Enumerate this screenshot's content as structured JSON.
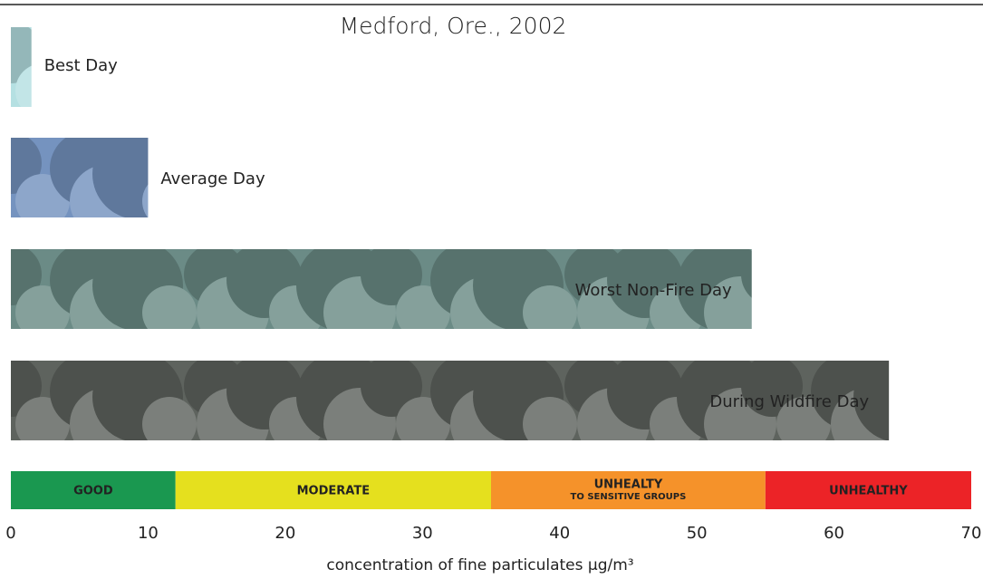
{
  "chart_data": {
    "type": "bar",
    "title": "Medford, Ore., 2002",
    "categories": [
      "Best Day",
      "Average Day",
      "Worst Non-Fire Day",
      "During Wildfire Day"
    ],
    "values": [
      1.5,
      10,
      54,
      64
    ],
    "colors": [
      "#b5e0e2",
      "#7593bf",
      "#6b8b86",
      "#5e635e"
    ],
    "xlim": [
      0,
      70
    ],
    "xticks": [
      0,
      10,
      20,
      30,
      40,
      50,
      60,
      70
    ],
    "xlabel": "concentration of fine particulates µg/m³",
    "bands": [
      {
        "label": "GOOD",
        "start": 0,
        "end": 12,
        "color": "#1a9850"
      },
      {
        "label": "MODERATE",
        "start": 12,
        "end": 35,
        "color": "#e5e01e"
      },
      {
        "label": "UNHEALTY",
        "sublabel": "TO SENSITIVE GROUPS",
        "start": 35,
        "end": 55,
        "color": "#f5922a"
      },
      {
        "label": "UNHEALTHY",
        "start": 55,
        "end": 70,
        "color": "#ec2327"
      }
    ]
  }
}
